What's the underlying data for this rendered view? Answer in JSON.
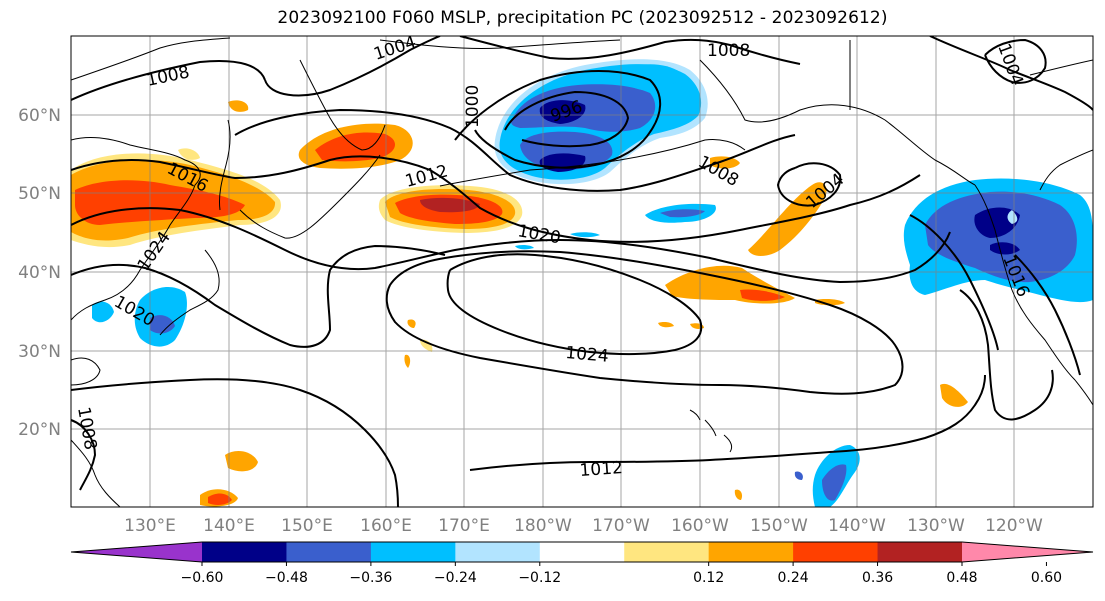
{
  "title": "2023092100 F060 MSLP, precipitation PC (2023092512 - 2023092612)",
  "lat_labels": [
    "60°N",
    "50°N",
    "40°N",
    "30°N",
    "20°N"
  ],
  "lon_labels": [
    "130°E",
    "140°E",
    "150°E",
    "160°E",
    "170°E",
    "180°W",
    "170°W",
    "160°W",
    "150°W",
    "140°W",
    "130°W",
    "120°W"
  ],
  "colorbar": {
    "colors": [
      "#9933cc",
      "#000088",
      "#3a5fcd",
      "#00bfff",
      "#b2e4ff",
      "#ffffff",
      "#ffe680",
      "#ffa500",
      "#ff4000",
      "#b22222",
      "#ff88aa"
    ],
    "ticks": [
      "−0.60",
      "−0.48",
      "−0.36",
      "−0.24",
      "−0.12",
      "0.12",
      "0.24",
      "0.36",
      "0.48",
      "0.60"
    ]
  },
  "isobar_labels": [
    {
      "text": "1008",
      "key": "a"
    },
    {
      "text": "1004",
      "key": "b"
    },
    {
      "text": "1008",
      "key": "c"
    },
    {
      "text": "1000",
      "key": "d"
    },
    {
      "text": "996",
      "key": "e"
    },
    {
      "text": "1004",
      "key": "f"
    },
    {
      "text": "1016",
      "key": "g"
    },
    {
      "text": "1012",
      "key": "h"
    },
    {
      "text": "1008",
      "key": "i"
    },
    {
      "text": "1004",
      "key": "j"
    },
    {
      "text": "1020",
      "key": "k"
    },
    {
      "text": "1024",
      "key": "l"
    },
    {
      "text": "1020",
      "key": "m"
    },
    {
      "text": "1024",
      "key": "n"
    },
    {
      "text": "1016",
      "key": "o"
    },
    {
      "text": "1008",
      "key": "p"
    },
    {
      "text": "1012",
      "key": "q"
    }
  ]
}
